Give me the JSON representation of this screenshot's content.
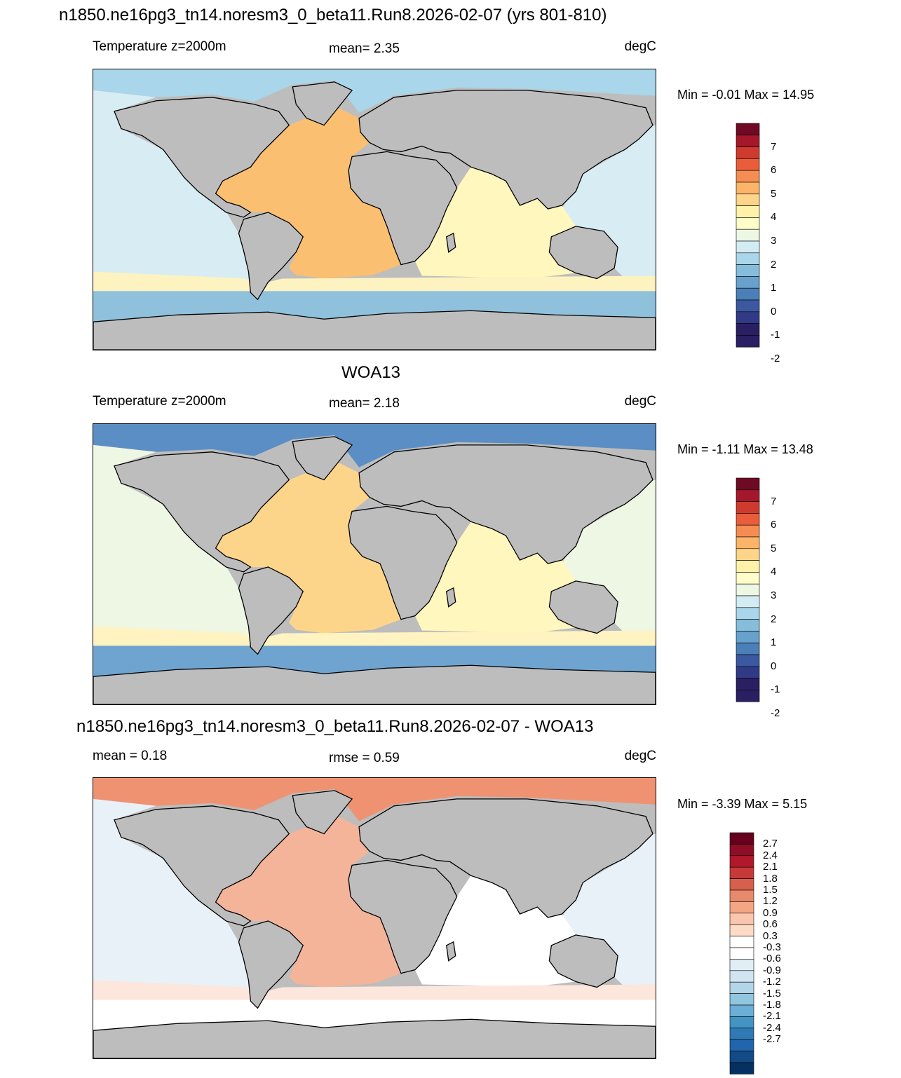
{
  "panels": [
    {
      "id": "model",
      "title": "n1850.ne16pg3_tn14.noresm3_0_beta11.Run8.2026-02-07 (yrs 801-810)",
      "left_label": "Temperature z=2000m",
      "center_label": "mean=   2.35",
      "units": "degC",
      "minmax": "Min =  -0.01 Max =  14.95",
      "colorbar": [
        "7",
        "6",
        "5",
        "4",
        "3",
        "2",
        "1",
        "0",
        "-1",
        "-2"
      ],
      "colors": {
        "arctic": "#a9d6ea",
        "pacific": "#d8ecf3",
        "atlantic": "#fbbf72",
        "indian": "#fff7bd",
        "southern_band": "#fdf3c0",
        "southern_ocean": "#8fc1dd"
      }
    },
    {
      "id": "obs",
      "title": "WOA13",
      "left_label": "Temperature z=2000m",
      "center_label": "mean=   2.18",
      "units": "degC",
      "minmax": "Min =  -1.11 Max =  13.48",
      "colorbar": [
        "7",
        "6",
        "5",
        "4",
        "3",
        "2",
        "1",
        "0",
        "-1",
        "-2"
      ],
      "colors": {
        "arctic": "#5b8ec4",
        "pacific": "#eef6e4",
        "atlantic": "#fdd58a",
        "indian": "#fff7bd",
        "southern_band": "#fff3c2",
        "southern_ocean": "#6fa4d0"
      }
    },
    {
      "id": "diff",
      "title": "n1850.ne16pg3_tn14.noresm3_0_beta11.Run8.2026-02-07 - WOA13",
      "left_label": "mean =   0.18",
      "center_label": "rmse =   0.59",
      "units": "degC",
      "minmax": "Min =  -3.39 Max =   5.15",
      "colorbar": [
        "2.7",
        "2.4",
        "2.1",
        "1.8",
        "1.5",
        "1.2",
        "0.9",
        "0.6",
        "0.3",
        "-0.3",
        "-0.6",
        "-0.9",
        "-1.2",
        "-1.5",
        "-1.8",
        "-2.1",
        "-2.4",
        "-2.7"
      ],
      "colors": {
        "arctic": "#ef9272",
        "pacific": "#e8f1f7",
        "atlantic": "#f4b49a",
        "indian": "#ffffff",
        "southern_band": "#fde6dc",
        "southern_ocean": "#ffffff"
      }
    }
  ],
  "palettes": {
    "temp": [
      "#6e0a24",
      "#a5172a",
      "#cf3a2f",
      "#ea5d3a",
      "#f58d52",
      "#fbb468",
      "#fdd58a",
      "#fff2a8",
      "#fffdc8",
      "#eef6e4",
      "#d3ecf3",
      "#a9d6ea",
      "#86bddb",
      "#67a1cc",
      "#4a7fb8",
      "#3c58a0",
      "#313a86",
      "#2a1f63"
    ],
    "diff": [
      "#67001f",
      "#8e0e26",
      "#b2182b",
      "#c73a3a",
      "#d6604d",
      "#e7896b",
      "#f4a582",
      "#f9c6ae",
      "#fddbc7",
      "#ffffff",
      "#ffffff",
      "#e2eef6",
      "#d1e5f0",
      "#b3d5e8",
      "#92c5de",
      "#6baed6",
      "#4393c3",
      "#2f79b5",
      "#2166ac",
      "#124b86",
      "#053061"
    ]
  }
}
